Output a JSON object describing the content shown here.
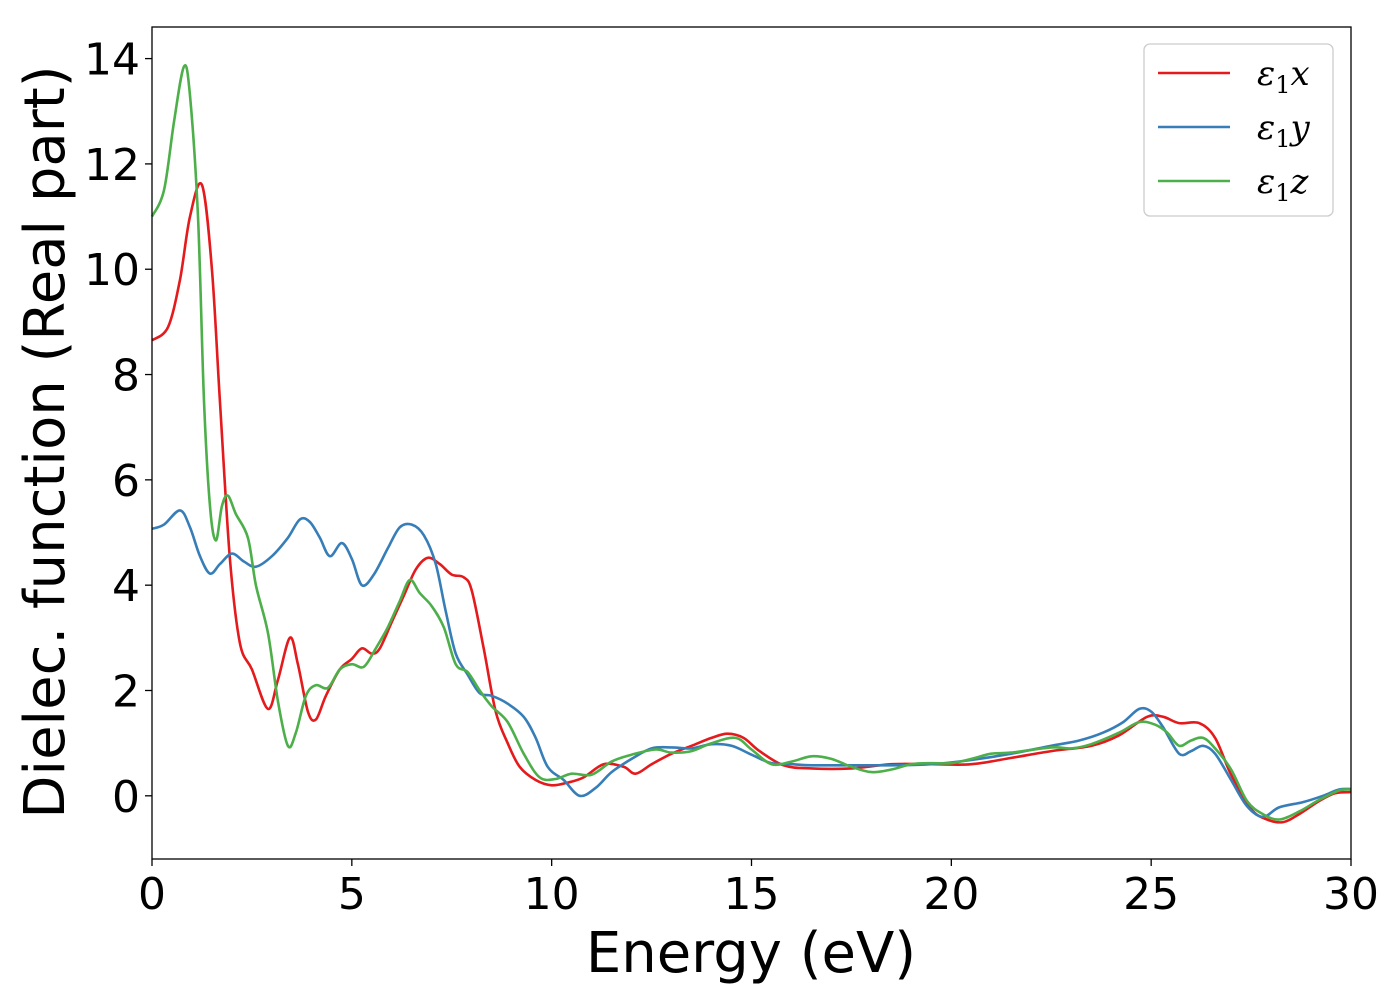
{
  "chart_data": {
    "type": "line",
    "title": "",
    "xlabel": "Energy (eV)",
    "ylabel": "Dielec. function (Real part)",
    "xlim": [
      0,
      30
    ],
    "ylim": [
      -1.2,
      14.6
    ],
    "xticks": [
      0,
      5,
      10,
      15,
      20,
      25,
      30
    ],
    "yticks": [
      0,
      2,
      4,
      6,
      8,
      10,
      12,
      14
    ],
    "grid": false,
    "legend_position": "top-right",
    "series": [
      {
        "name": "ε₁x",
        "legend": {
          "base": "ε",
          "sub": "1",
          "var": "x"
        },
        "color": "#e41a1c",
        "points": [
          [
            0,
            8.65
          ],
          [
            0.4,
            8.9
          ],
          [
            0.7,
            9.8
          ],
          [
            0.95,
            11.0
          ],
          [
            1.25,
            11.6
          ],
          [
            1.5,
            10.0
          ],
          [
            1.7,
            7.5
          ],
          [
            1.95,
            4.5
          ],
          [
            2.2,
            2.9
          ],
          [
            2.5,
            2.4
          ],
          [
            2.9,
            1.65
          ],
          [
            3.15,
            2.2
          ],
          [
            3.45,
            3.0
          ],
          [
            3.65,
            2.5
          ],
          [
            3.9,
            1.6
          ],
          [
            4.1,
            1.45
          ],
          [
            4.35,
            1.9
          ],
          [
            4.7,
            2.4
          ],
          [
            5.0,
            2.6
          ],
          [
            5.25,
            2.8
          ],
          [
            5.5,
            2.7
          ],
          [
            5.7,
            2.8
          ],
          [
            6.0,
            3.3
          ],
          [
            6.3,
            3.8
          ],
          [
            6.6,
            4.3
          ],
          [
            6.9,
            4.52
          ],
          [
            7.2,
            4.4
          ],
          [
            7.5,
            4.2
          ],
          [
            7.8,
            4.15
          ],
          [
            8.0,
            3.9
          ],
          [
            8.3,
            2.8
          ],
          [
            8.6,
            1.6
          ],
          [
            8.9,
            1.0
          ],
          [
            9.2,
            0.55
          ],
          [
            9.6,
            0.3
          ],
          [
            10.0,
            0.2
          ],
          [
            10.4,
            0.25
          ],
          [
            10.8,
            0.35
          ],
          [
            11.3,
            0.6
          ],
          [
            11.8,
            0.55
          ],
          [
            12.1,
            0.42
          ],
          [
            12.5,
            0.6
          ],
          [
            13.0,
            0.8
          ],
          [
            13.5,
            0.95
          ],
          [
            14.0,
            1.1
          ],
          [
            14.4,
            1.18
          ],
          [
            14.8,
            1.1
          ],
          [
            15.2,
            0.85
          ],
          [
            15.8,
            0.58
          ],
          [
            16.5,
            0.52
          ],
          [
            17.5,
            0.52
          ],
          [
            18.5,
            0.6
          ],
          [
            19.5,
            0.6
          ],
          [
            20.5,
            0.6
          ],
          [
            21.5,
            0.72
          ],
          [
            22.5,
            0.85
          ],
          [
            23.5,
            0.95
          ],
          [
            24.2,
            1.15
          ],
          [
            24.9,
            1.5
          ],
          [
            25.3,
            1.5
          ],
          [
            25.7,
            1.38
          ],
          [
            26.2,
            1.38
          ],
          [
            26.6,
            1.1
          ],
          [
            27.0,
            0.4
          ],
          [
            27.5,
            -0.25
          ],
          [
            27.9,
            -0.45
          ],
          [
            28.3,
            -0.5
          ],
          [
            28.7,
            -0.35
          ],
          [
            29.2,
            -0.1
          ],
          [
            29.6,
            0.05
          ],
          [
            30.0,
            0.07
          ]
        ]
      },
      {
        "name": "ε₁y",
        "legend": {
          "base": "ε",
          "sub": "1",
          "var": "y"
        },
        "color": "#377eb8",
        "points": [
          [
            0,
            5.07
          ],
          [
            0.3,
            5.15
          ],
          [
            0.7,
            5.42
          ],
          [
            0.95,
            5.1
          ],
          [
            1.2,
            4.55
          ],
          [
            1.45,
            4.22
          ],
          [
            1.7,
            4.4
          ],
          [
            2.0,
            4.6
          ],
          [
            2.3,
            4.45
          ],
          [
            2.6,
            4.35
          ],
          [
            3.0,
            4.55
          ],
          [
            3.4,
            4.9
          ],
          [
            3.7,
            5.25
          ],
          [
            3.95,
            5.2
          ],
          [
            4.2,
            4.9
          ],
          [
            4.45,
            4.55
          ],
          [
            4.75,
            4.8
          ],
          [
            5.0,
            4.5
          ],
          [
            5.25,
            4.0
          ],
          [
            5.55,
            4.2
          ],
          [
            5.9,
            4.7
          ],
          [
            6.2,
            5.1
          ],
          [
            6.5,
            5.15
          ],
          [
            6.8,
            4.95
          ],
          [
            7.1,
            4.4
          ],
          [
            7.35,
            3.5
          ],
          [
            7.6,
            2.7
          ],
          [
            7.9,
            2.3
          ],
          [
            8.2,
            1.95
          ],
          [
            8.5,
            1.9
          ],
          [
            8.9,
            1.75
          ],
          [
            9.3,
            1.5
          ],
          [
            9.6,
            1.1
          ],
          [
            9.9,
            0.55
          ],
          [
            10.3,
            0.3
          ],
          [
            10.7,
            0.0
          ],
          [
            11.1,
            0.15
          ],
          [
            11.5,
            0.45
          ],
          [
            12.0,
            0.7
          ],
          [
            12.5,
            0.9
          ],
          [
            13.0,
            0.92
          ],
          [
            13.5,
            0.9
          ],
          [
            14.0,
            0.98
          ],
          [
            14.5,
            0.95
          ],
          [
            15.0,
            0.78
          ],
          [
            15.5,
            0.62
          ],
          [
            16.0,
            0.6
          ],
          [
            16.5,
            0.58
          ],
          [
            17.5,
            0.58
          ],
          [
            18.5,
            0.58
          ],
          [
            19.5,
            0.6
          ],
          [
            20.5,
            0.68
          ],
          [
            21.5,
            0.8
          ],
          [
            22.5,
            0.95
          ],
          [
            23.2,
            1.05
          ],
          [
            23.8,
            1.2
          ],
          [
            24.3,
            1.4
          ],
          [
            24.7,
            1.65
          ],
          [
            25.0,
            1.6
          ],
          [
            25.3,
            1.3
          ],
          [
            25.7,
            0.8
          ],
          [
            26.0,
            0.85
          ],
          [
            26.3,
            0.95
          ],
          [
            26.6,
            0.8
          ],
          [
            27.0,
            0.3
          ],
          [
            27.4,
            -0.2
          ],
          [
            27.8,
            -0.4
          ],
          [
            28.2,
            -0.22
          ],
          [
            28.8,
            -0.12
          ],
          [
            29.3,
            0.0
          ],
          [
            29.7,
            0.12
          ],
          [
            30.0,
            0.13
          ]
        ]
      },
      {
        "name": "ε₁z",
        "legend": {
          "base": "ε",
          "sub": "1",
          "var": "z"
        },
        "color": "#4daf4a",
        "points": [
          [
            0,
            11.0
          ],
          [
            0.3,
            11.5
          ],
          [
            0.55,
            12.8
          ],
          [
            0.8,
            13.85
          ],
          [
            0.95,
            13.3
          ],
          [
            1.15,
            11.0
          ],
          [
            1.3,
            7.5
          ],
          [
            1.45,
            5.5
          ],
          [
            1.6,
            4.85
          ],
          [
            1.75,
            5.5
          ],
          [
            1.9,
            5.7
          ],
          [
            2.1,
            5.35
          ],
          [
            2.4,
            4.9
          ],
          [
            2.6,
            4.0
          ],
          [
            2.9,
            3.1
          ],
          [
            3.15,
            1.8
          ],
          [
            3.4,
            0.95
          ],
          [
            3.6,
            1.2
          ],
          [
            3.85,
            1.9
          ],
          [
            4.1,
            2.1
          ],
          [
            4.4,
            2.05
          ],
          [
            4.7,
            2.4
          ],
          [
            5.0,
            2.5
          ],
          [
            5.3,
            2.45
          ],
          [
            5.6,
            2.8
          ],
          [
            5.9,
            3.2
          ],
          [
            6.2,
            3.7
          ],
          [
            6.45,
            4.1
          ],
          [
            6.7,
            3.85
          ],
          [
            7.0,
            3.6
          ],
          [
            7.3,
            3.2
          ],
          [
            7.6,
            2.5
          ],
          [
            7.9,
            2.35
          ],
          [
            8.2,
            2.0
          ],
          [
            8.5,
            1.7
          ],
          [
            8.9,
            1.4
          ],
          [
            9.3,
            0.8
          ],
          [
            9.7,
            0.35
          ],
          [
            10.1,
            0.32
          ],
          [
            10.5,
            0.42
          ],
          [
            11.0,
            0.4
          ],
          [
            11.5,
            0.65
          ],
          [
            12.0,
            0.78
          ],
          [
            12.6,
            0.88
          ],
          [
            13.0,
            0.82
          ],
          [
            13.5,
            0.85
          ],
          [
            14.0,
            1.0
          ],
          [
            14.6,
            1.1
          ],
          [
            15.0,
            0.88
          ],
          [
            15.5,
            0.6
          ],
          [
            16.0,
            0.65
          ],
          [
            16.5,
            0.75
          ],
          [
            17.0,
            0.7
          ],
          [
            17.5,
            0.55
          ],
          [
            18.0,
            0.45
          ],
          [
            18.5,
            0.5
          ],
          [
            19.0,
            0.6
          ],
          [
            19.5,
            0.62
          ],
          [
            20.0,
            0.62
          ],
          [
            20.5,
            0.7
          ],
          [
            21.0,
            0.8
          ],
          [
            21.5,
            0.82
          ],
          [
            22.5,
            0.92
          ],
          [
            23.0,
            0.9
          ],
          [
            23.5,
            0.98
          ],
          [
            24.2,
            1.2
          ],
          [
            24.7,
            1.4
          ],
          [
            25.1,
            1.35
          ],
          [
            25.4,
            1.2
          ],
          [
            25.7,
            0.95
          ],
          [
            26.0,
            1.05
          ],
          [
            26.3,
            1.1
          ],
          [
            26.6,
            0.9
          ],
          [
            27.0,
            0.5
          ],
          [
            27.4,
            -0.1
          ],
          [
            27.8,
            -0.35
          ],
          [
            28.2,
            -0.45
          ],
          [
            28.7,
            -0.3
          ],
          [
            29.2,
            -0.08
          ],
          [
            29.7,
            0.1
          ],
          [
            30.0,
            0.12
          ]
        ]
      }
    ]
  }
}
